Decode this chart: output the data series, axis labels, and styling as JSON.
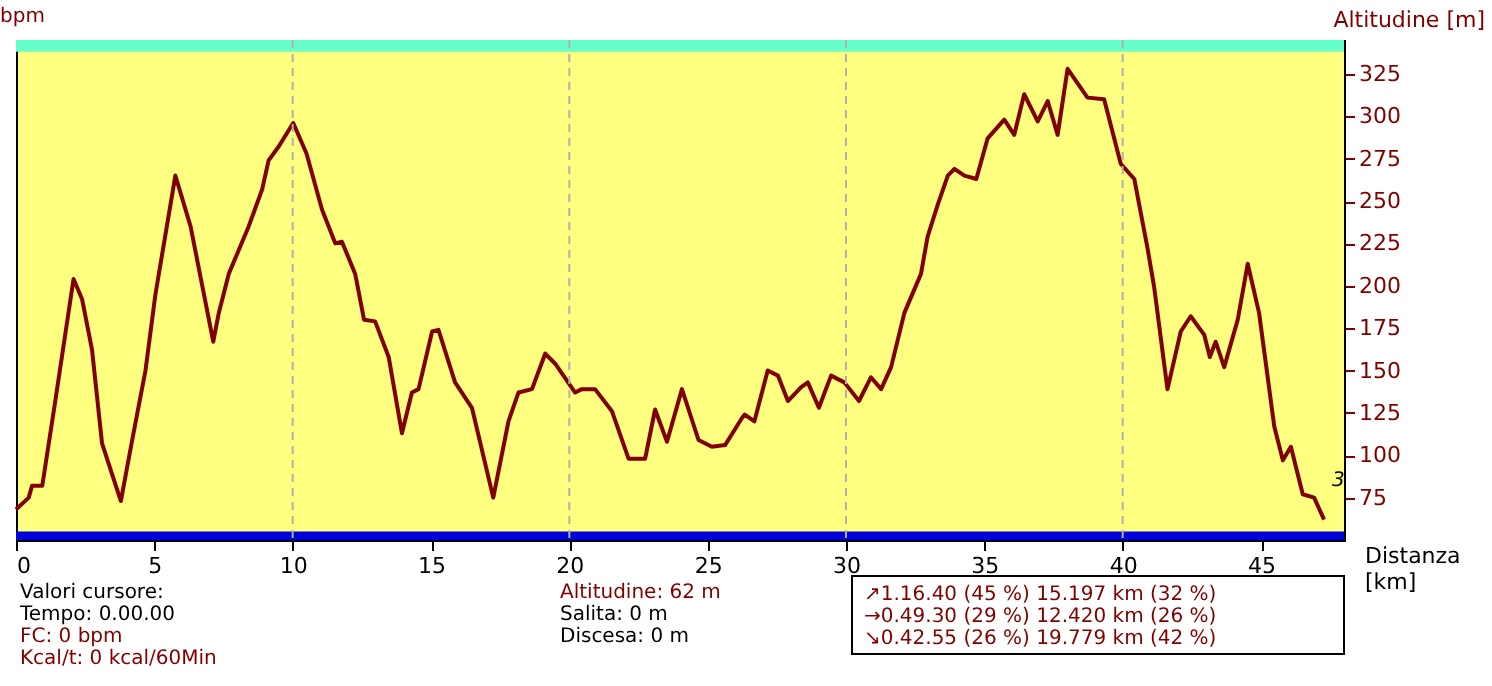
{
  "chart_data": {
    "type": "line",
    "xlabel": "Distanza [km]",
    "ylabel": "Altitudine [m]",
    "xlim": [
      0,
      48
    ],
    "xticks": [
      0,
      5,
      10,
      15,
      20,
      25,
      30,
      35,
      40,
      45
    ],
    "ylim": [
      50,
      345
    ],
    "yticks": [
      75,
      100,
      125,
      150,
      175,
      200,
      225,
      250,
      275,
      300,
      325
    ],
    "grid": false,
    "marker": "none",
    "line_style": "solid",
    "series": [
      {
        "color": "#800000",
        "x": [
          0,
          0.46,
          0.58,
          0.95,
          1.42,
          2.08,
          2.39,
          2.75,
          3.11,
          3.79,
          4.2,
          4.68,
          5.04,
          5.76,
          6.31,
          7.13,
          7.33,
          7.69,
          8.41,
          8.9,
          9.13,
          9.49,
          10.02,
          10.5,
          11.06,
          11.54,
          11.78,
          12.26,
          12.58,
          12.98,
          13.47,
          13.95,
          14.31,
          14.55,
          15.04,
          15.27,
          15.87,
          16.48,
          17.25,
          17.8,
          18.16,
          18.65,
          19.13,
          19.49,
          20.21,
          20.45,
          20.93,
          21.54,
          22.14,
          22.74,
          23.1,
          23.53,
          24.07,
          24.67,
          25.15,
          25.63,
          26.24,
          26.34,
          26.69,
          27.17,
          27.54,
          27.9,
          28.37,
          28.62,
          29.02,
          29.46,
          29.94,
          30.47,
          30.9,
          31.27,
          31.63,
          32.11,
          32.71,
          32.95,
          33.32,
          33.68,
          33.92,
          34.28,
          34.71,
          35.12,
          35.72,
          36.08,
          36.44,
          36.93,
          37.29,
          37.65,
          38.01,
          38.73,
          39.33,
          39.93,
          40.42,
          40.9,
          41.14,
          41.62,
          42.1,
          42.46,
          42.95,
          43.15,
          43.36,
          43.67,
          44.16,
          44.52,
          44.93,
          45.48,
          45.79,
          46.08,
          46.51,
          46.92,
          47.28
        ],
        "values": [
          68,
          75,
          82,
          82,
          132,
          204,
          192,
          162,
          107,
          73,
          109,
          150,
          195,
          265,
          235,
          167,
          184,
          207,
          235,
          257,
          274,
          282,
          296,
          278,
          245,
          225,
          226,
          207,
          180,
          179,
          158,
          113,
          137,
          139,
          173,
          174,
          143,
          128,
          75,
          120,
          137,
          139,
          160,
          154,
          137,
          139,
          139,
          126,
          98,
          98,
          127,
          108,
          139,
          109,
          105,
          106,
          122,
          124,
          120,
          150,
          147,
          132,
          140,
          143,
          128,
          147,
          143,
          132,
          146,
          139,
          152,
          184,
          207,
          229,
          248,
          265,
          269,
          265,
          263,
          287,
          298,
          289,
          313,
          297,
          309,
          289,
          328,
          311,
          310,
          272,
          263,
          222,
          199,
          139,
          173,
          182,
          171,
          158,
          167,
          152,
          180,
          213,
          184,
          117,
          97,
          105,
          77,
          75,
          62
        ]
      }
    ],
    "bands": [
      {
        "axis": "y",
        "from": 50,
        "to": 55,
        "color": "#0000dd"
      },
      {
        "axis": "y",
        "from": 338,
        "to": 345,
        "color": "#66ffcc"
      }
    ],
    "ref_lines": [
      {
        "axis": "x",
        "value": 10,
        "color": "#b0b0b0",
        "line_style": "dashed"
      },
      {
        "axis": "x",
        "value": 20,
        "color": "#b0b0b0",
        "line_style": "dashed"
      },
      {
        "axis": "x",
        "value": 30,
        "color": "#b0b0b0",
        "line_style": "dashed"
      },
      {
        "axis": "x",
        "value": 40,
        "color": "#b0b0b0",
        "line_style": "dashed"
      }
    ],
    "annotations": [
      "bpm",
      "Valori cursore:",
      "Tempo: 0.00.00",
      "FC: 0 bpm",
      "Kcal/t: 0 kcal/60Min",
      "Altitudine: 62 m",
      "Salita: 0 m",
      "Discesa: 0 m",
      "↗1.16.40  (45 %) 15.197 km  (32 %)",
      "→0.49.30  (29 %) 12.420 km  (26 %)",
      "↘0.42.55  (26 %) 19.779 km  (42 %)",
      "3"
    ]
  }
}
